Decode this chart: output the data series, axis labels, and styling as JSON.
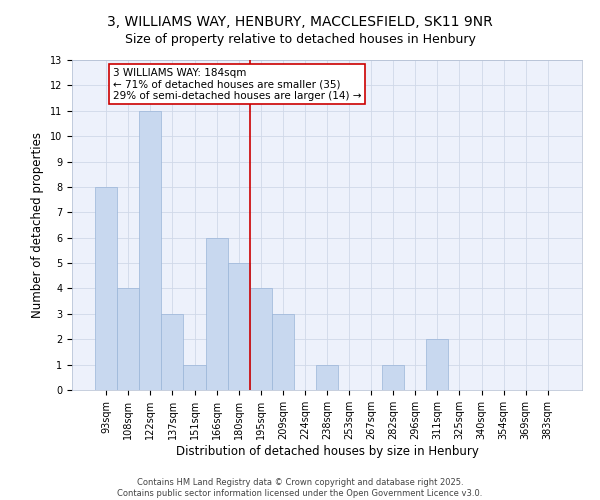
{
  "title_line1": "3, WILLIAMS WAY, HENBURY, MACCLESFIELD, SK11 9NR",
  "title_line2": "Size of property relative to detached houses in Henbury",
  "xlabel": "Distribution of detached houses by size in Henbury",
  "ylabel": "Number of detached properties",
  "bins": [
    "93sqm",
    "108sqm",
    "122sqm",
    "137sqm",
    "151sqm",
    "166sqm",
    "180sqm",
    "195sqm",
    "209sqm",
    "224sqm",
    "238sqm",
    "253sqm",
    "267sqm",
    "282sqm",
    "296sqm",
    "311sqm",
    "325sqm",
    "340sqm",
    "354sqm",
    "369sqm",
    "383sqm"
  ],
  "values": [
    8,
    4,
    11,
    3,
    1,
    6,
    5,
    4,
    3,
    0,
    1,
    0,
    0,
    1,
    0,
    2,
    0,
    0,
    0,
    0,
    0
  ],
  "bar_color": "#c8d8ef",
  "bar_edgecolor": "#9ab5d8",
  "vline_x_index": 6.5,
  "vline_color": "#cc0000",
  "annotation_line1": "3 WILLIAMS WAY: 184sqm",
  "annotation_line2": "← 71% of detached houses are smaller (35)",
  "annotation_line3": "29% of semi-detached houses are larger (14) →",
  "annotation_box_color": "#cc0000",
  "ylim": [
    0,
    13
  ],
  "yticks": [
    0,
    1,
    2,
    3,
    4,
    5,
    6,
    7,
    8,
    9,
    10,
    11,
    12,
    13
  ],
  "grid_color": "#d0d8e8",
  "background_color": "#edf1fb",
  "footer_line1": "Contains HM Land Registry data © Crown copyright and database right 2025.",
  "footer_line2": "Contains public sector information licensed under the Open Government Licence v3.0.",
  "title_fontsize": 10,
  "subtitle_fontsize": 9,
  "axis_label_fontsize": 8.5,
  "tick_fontsize": 7,
  "annotation_fontsize": 7.5,
  "footer_fontsize": 6
}
